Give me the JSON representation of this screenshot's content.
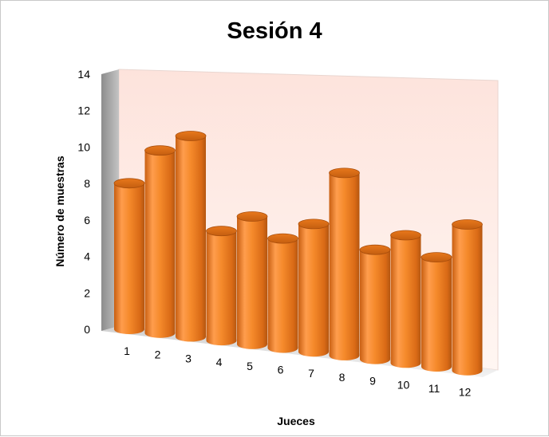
{
  "chart_data": {
    "type": "bar",
    "style": "3d-cylinder",
    "title": "Sesión 4",
    "xlabel": "Jueces",
    "ylabel": "Número de muestras",
    "categories": [
      "1",
      "2",
      "3",
      "4",
      "5",
      "6",
      "7",
      "8",
      "9",
      "10",
      "11",
      "12"
    ],
    "values": [
      8,
      10,
      11,
      6,
      7,
      6,
      7,
      10,
      6,
      7,
      6,
      8
    ],
    "ylim": [
      0,
      14
    ],
    "yticks": [
      "0",
      "2",
      "4",
      "6",
      "8",
      "10",
      "12",
      "14"
    ],
    "grid": false,
    "legend": "none",
    "colors": {
      "bar_light": "#ffae6a",
      "bar_mid": "#f58a2b",
      "bar_dark": "#b45610",
      "bar_top": "#e0701a",
      "back_wall": "#fdeeea",
      "side_wall": "#9c9c9c"
    }
  }
}
